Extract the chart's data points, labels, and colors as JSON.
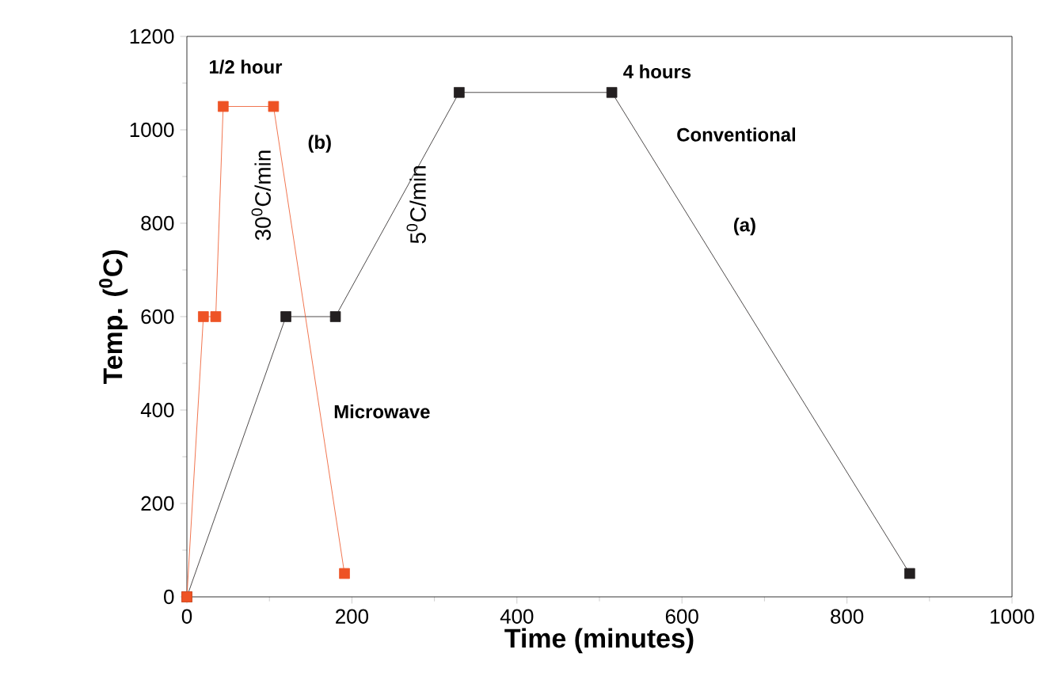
{
  "chart_data": {
    "type": "line",
    "xlabel": "Time (minutes)",
    "ylabel": "Temp. ($^{0}$C)",
    "xlim": [
      0,
      1000
    ],
    "ylim": [
      0,
      1200
    ],
    "xticks": [
      0,
      200,
      400,
      600,
      800,
      1000
    ],
    "yticks": [
      0,
      200,
      400,
      600,
      800,
      1000,
      1200
    ],
    "marker": "square",
    "grid": false,
    "series": [
      {
        "color": "#231f20",
        "x": [
          0,
          120,
          180,
          330,
          515,
          876
        ],
        "values": [
          0,
          600,
          600,
          1080,
          1080,
          50
        ]
      },
      {
        "color": "#ee5325",
        "x": [
          0,
          20,
          35,
          44,
          105,
          191
        ],
        "values": [
          0,
          600,
          600,
          1050,
          1050,
          50
        ]
      }
    ],
    "annotations": [
      "1/2 hour",
      "(b)",
      "30$^{0}$C/min",
      "5$^{0}$C/min",
      "4 hours",
      "Conventional",
      "(a)",
      "Microwave"
    ]
  }
}
